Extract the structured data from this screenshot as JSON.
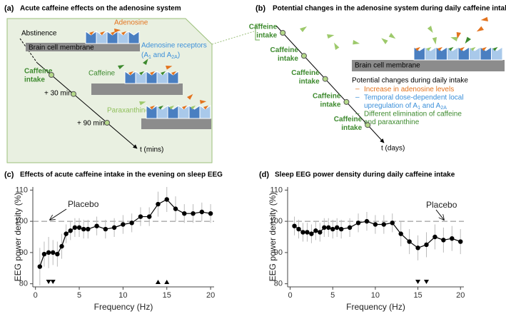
{
  "panel_a": {
    "label": "(a)",
    "title": "Acute caffeine effects on the adenosine system",
    "abstinence": "Abstinence",
    "membrane": "Brain cell membrane",
    "adenosine": "Adenosine",
    "receptors": "Adenosine receptors",
    "receptor_subtypes": [
      "(A",
      "1",
      " and A",
      "2A",
      ")"
    ],
    "caffeine_intake": [
      "Caffeine",
      "intake"
    ],
    "times": [
      "+ 30 min",
      "+ 90 min"
    ],
    "caffeine": "Caffeine",
    "paraxanthine": "Paraxanthine",
    "axis": "t (mins)"
  },
  "panel_b": {
    "label": "(b)",
    "title": "Potential changes in the adenosine system during daily caffeine intake",
    "intakes": [
      [
        "Caffeine",
        "intake"
      ],
      [
        "Caffeine",
        "intake"
      ],
      [
        "Caffeine",
        "intake"
      ],
      [
        "Caffeine",
        "intake"
      ],
      [
        "Caffeine",
        "intake"
      ]
    ],
    "membrane": "Brain cell membrane",
    "changes_title": "Potential changes during daily intake",
    "bullet": "–",
    "changes": [
      {
        "color": "#e3731e",
        "lines": [
          [
            "Increase in adenosine levels"
          ]
        ]
      },
      {
        "color": "#3b8fd9",
        "lines": [
          [
            "Temporal dose-dependent local"
          ],
          [
            "upregulation of A",
            "1",
            " and A",
            "2A"
          ]
        ]
      },
      {
        "color": "#3d8a2e",
        "lines": [
          [
            "Different elimination of caffeine"
          ],
          [
            "and paraxanthine"
          ]
        ]
      }
    ],
    "axis": "t (days)"
  },
  "chart_data": [
    {
      "type": "line",
      "label": "(c)",
      "title": "Effects of acute caffeine intake in the evening on sleep EEG",
      "x_label": "Frequency (Hz)",
      "y_label": "EEG power density (%)",
      "x": [
        0.5,
        1,
        1.5,
        2,
        2.5,
        3,
        3.5,
        4,
        4.5,
        5,
        5.5,
        6,
        7,
        8,
        9,
        10,
        11,
        12,
        13,
        14,
        15,
        16,
        17,
        18,
        19,
        20
      ],
      "values": [
        85.5,
        89.5,
        90,
        90,
        89.5,
        92,
        96,
        97,
        98,
        98,
        97.5,
        97.5,
        98.5,
        97.5,
        98,
        99,
        99.5,
        101.5,
        101.5,
        105.5,
        107,
        104,
        102.5,
        102.5,
        103,
        102.5
      ],
      "errors": [
        6,
        4,
        5,
        4,
        4,
        4,
        3,
        3,
        3,
        3,
        3,
        3,
        3,
        3,
        3,
        3,
        3,
        3,
        3,
        4,
        4,
        4,
        3,
        3,
        3,
        3
      ],
      "color": "#000000",
      "error_color": "#bbbbbb",
      "markers": [
        {
          "x": 1.5,
          "direction": "down"
        },
        {
          "x": 2,
          "direction": "down"
        },
        {
          "x": 14,
          "direction": "up"
        },
        {
          "x": 15,
          "direction": "up"
        }
      ],
      "reference_line": {
        "value": 100,
        "label": "Placebo"
      },
      "xlim": [
        -0.3,
        20.4
      ],
      "ylim": [
        79,
        111
      ],
      "xticks": [
        0,
        5,
        10,
        15,
        20
      ],
      "yticks": [
        80,
        90,
        100,
        110
      ]
    },
    {
      "type": "line",
      "label": "(d)",
      "title": "Sleep EEG power density during daily caffeine intake",
      "x_label": "Frequency (Hz)",
      "y_label": "EEG power density (%)",
      "x": [
        0.5,
        1,
        1.5,
        2,
        2.5,
        3,
        3.5,
        4,
        4.5,
        5,
        5.5,
        6,
        7,
        8,
        9,
        10,
        11,
        12,
        13,
        14,
        15,
        16,
        17,
        18,
        19,
        20
      ],
      "values": [
        98.5,
        97.5,
        96.5,
        96.5,
        96,
        97,
        96.5,
        98,
        98,
        97.5,
        98,
        97.5,
        98,
        99.5,
        100,
        99,
        99,
        99.5,
        96,
        93.5,
        91.5,
        92.5,
        95,
        94,
        94.5,
        93.5
      ],
      "errors": [
        3,
        3,
        3,
        3,
        3,
        3,
        3,
        3,
        3,
        3,
        3,
        3,
        3,
        3,
        3,
        3,
        3,
        3,
        4,
        4,
        4,
        4,
        4,
        4,
        4,
        4
      ],
      "color": "#000000",
      "error_color": "#bbbbbb",
      "markers": [
        {
          "x": 15,
          "direction": "down"
        },
        {
          "x": 16,
          "direction": "down"
        }
      ],
      "reference_line": {
        "value": 100,
        "label": "Placebo"
      },
      "xlim": [
        -0.3,
        20.4
      ],
      "ylim": [
        79,
        111
      ],
      "xticks": [
        0,
        5,
        10,
        15,
        20
      ],
      "yticks": [
        80,
        90,
        100,
        110
      ]
    }
  ]
}
